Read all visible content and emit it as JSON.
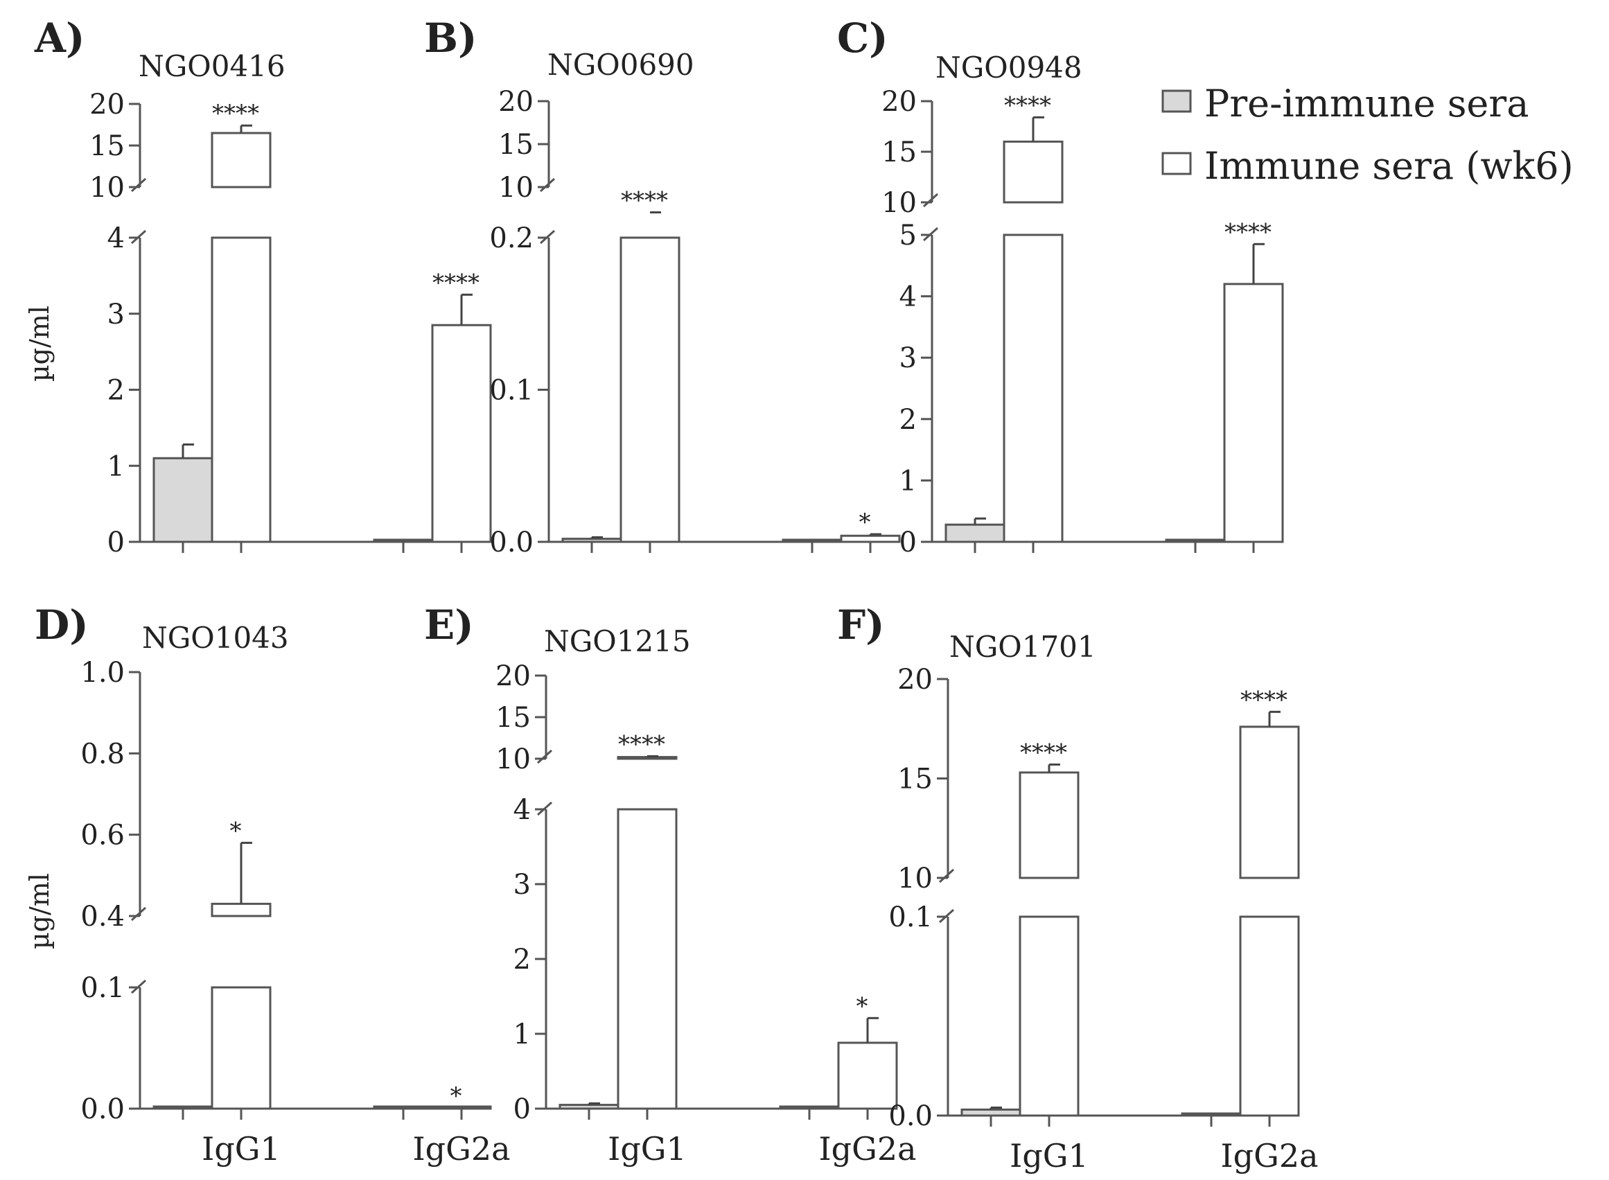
{
  "colors": {
    "pre_immune_fill": "#d9d9d9",
    "immune_fill": "#ffffff",
    "axis": "#555555"
  },
  "legend": {
    "items": [
      {
        "label": "Pre-immune sera",
        "swatch": "#d9d9d9"
      },
      {
        "label": "Immune sera (wk6)",
        "swatch": "#ffffff"
      }
    ]
  },
  "ylabel": "µg/ml",
  "chart_data": [
    {
      "type": "bar",
      "panel": "A)",
      "title": "NGO0416",
      "categories": [
        "IgG1",
        "IgG2a"
      ],
      "show_xticklabels": false,
      "ylabel": "µg/ml",
      "segments": [
        {
          "domain": [
            0,
            4
          ],
          "ticks": [
            0,
            1,
            2,
            3,
            4
          ],
          "tick_labels": [
            "0",
            "1",
            "2",
            "3",
            "4"
          ]
        },
        {
          "domain": [
            10,
            20
          ],
          "ticks": [
            10,
            15,
            20
          ],
          "tick_labels": [
            "10",
            "15",
            "20"
          ]
        }
      ],
      "series": [
        {
          "name": "Pre-immune sera",
          "values": [
            1.1,
            0
          ],
          "errors": [
            0.18,
            0
          ]
        },
        {
          "name": "Immune sera (wk6)",
          "values": [
            16.5,
            2.85
          ],
          "errors": [
            0.9,
            0.4
          ]
        }
      ],
      "annotations": [
        {
          "series": 1,
          "category": 0,
          "text": "****"
        },
        {
          "series": 1,
          "category": 1,
          "text": "****"
        }
      ]
    },
    {
      "type": "bar",
      "panel": "B)",
      "title": "NGO0690",
      "categories": [
        "IgG1",
        "IgG2a"
      ],
      "show_xticklabels": false,
      "ylabel": "",
      "segments": [
        {
          "domain": [
            0,
            0.2
          ],
          "ticks": [
            0,
            0.1,
            0.2
          ],
          "tick_labels": [
            "0.0",
            "0.1",
            "0.2"
          ]
        },
        {
          "domain": [
            10,
            20
          ],
          "ticks": [
            10,
            15,
            20
          ],
          "tick_labels": [
            "10",
            "15",
            "20"
          ]
        }
      ],
      "series": [
        {
          "name": "Pre-immune sera",
          "values": [
            0.002,
            0
          ],
          "errors": [
            0.001,
            0
          ]
        },
        {
          "name": "Immune sera (wk6)",
          "values": [
            9.0,
            0.004
          ],
          "errors": [
            0.15,
            0.001
          ]
        }
      ],
      "annotations": [
        {
          "series": 1,
          "category": 0,
          "text": "****"
        },
        {
          "series": 1,
          "category": 1,
          "text": "*"
        }
      ]
    },
    {
      "type": "bar",
      "panel": "C)",
      "title": "NGO0948",
      "categories": [
        "IgG1",
        "IgG2a"
      ],
      "show_xticklabels": false,
      "ylabel": "",
      "segments": [
        {
          "domain": [
            0,
            5
          ],
          "ticks": [
            0,
            1,
            2,
            3,
            4,
            5
          ],
          "tick_labels": [
            "0",
            "1",
            "2",
            "3",
            "4",
            "5"
          ]
        },
        {
          "domain": [
            10,
            20
          ],
          "ticks": [
            10,
            15,
            20
          ],
          "tick_labels": [
            "10",
            "15",
            "20"
          ]
        }
      ],
      "series": [
        {
          "name": "Pre-immune sera",
          "values": [
            0.28,
            0
          ],
          "errors": [
            0.1,
            0
          ]
        },
        {
          "name": "Immune sera (wk6)",
          "values": [
            16.0,
            4.2
          ],
          "errors": [
            2.4,
            0.65
          ]
        }
      ],
      "annotations": [
        {
          "series": 1,
          "category": 0,
          "text": "****"
        },
        {
          "series": 1,
          "category": 1,
          "text": "****"
        }
      ]
    },
    {
      "type": "bar",
      "panel": "D)",
      "title": "NGO1043",
      "categories": [
        "IgG1",
        "IgG2a"
      ],
      "show_xticklabels": true,
      "ylabel": "µg/ml",
      "segments": [
        {
          "domain": [
            0,
            0.1
          ],
          "ticks": [
            0,
            0.1
          ],
          "tick_labels": [
            "0.0",
            "0.1"
          ]
        },
        {
          "domain": [
            0.4,
            1.0
          ],
          "ticks": [
            0.4,
            0.6,
            0.8,
            1.0
          ],
          "tick_labels": [
            "0.4",
            "0.6",
            "0.8",
            "1.0"
          ]
        }
      ],
      "series": [
        {
          "name": "Pre-immune sera",
          "values": [
            0,
            0
          ],
          "errors": [
            0,
            0
          ]
        },
        {
          "name": "Immune sera (wk6)",
          "values": [
            0.43,
            0.0005
          ],
          "errors": [
            0.15,
            0
          ]
        }
      ],
      "annotations": [
        {
          "series": 1,
          "category": 0,
          "text": "*"
        },
        {
          "series": 1,
          "category": 1,
          "text": "*"
        }
      ]
    },
    {
      "type": "bar",
      "panel": "E)",
      "title": "NGO1215",
      "categories": [
        "IgG1",
        "IgG2a"
      ],
      "show_xticklabels": true,
      "ylabel": "",
      "segments": [
        {
          "domain": [
            0,
            4
          ],
          "ticks": [
            0,
            1,
            2,
            3,
            4
          ],
          "tick_labels": [
            "0",
            "1",
            "2",
            "3",
            "4"
          ]
        },
        {
          "domain": [
            10,
            20
          ],
          "ticks": [
            10,
            15,
            20
          ],
          "tick_labels": [
            "10",
            "15",
            "20"
          ]
        }
      ],
      "series": [
        {
          "name": "Pre-immune sera",
          "values": [
            0.05,
            0
          ],
          "errors": [
            0.02,
            0
          ]
        },
        {
          "name": "Immune sera (wk6)",
          "values": [
            10.2,
            0.88
          ],
          "errors": [
            0.1,
            0.33
          ]
        }
      ],
      "annotations": [
        {
          "series": 1,
          "category": 0,
          "text": "****"
        },
        {
          "series": 1,
          "category": 1,
          "text": "*"
        }
      ]
    },
    {
      "type": "bar",
      "panel": "F)",
      "title": "NGO1701",
      "categories": [
        "IgG1",
        "IgG2a"
      ],
      "show_xticklabels": true,
      "ylabel": "",
      "segments": [
        {
          "domain": [
            0,
            0.1
          ],
          "ticks": [
            0,
            0.1
          ],
          "tick_labels": [
            "0.0",
            "0.1"
          ]
        },
        {
          "domain": [
            10,
            20
          ],
          "ticks": [
            10,
            15,
            20
          ],
          "tick_labels": [
            "10",
            "15",
            "20"
          ]
        }
      ],
      "series": [
        {
          "name": "Pre-immune sera",
          "values": [
            0.003,
            0
          ],
          "errors": [
            0.001,
            0
          ]
        },
        {
          "name": "Immune sera (wk6)",
          "values": [
            15.3,
            17.6
          ],
          "errors": [
            0.4,
            0.75
          ]
        }
      ],
      "annotations": [
        {
          "series": 1,
          "category": 0,
          "text": "****"
        },
        {
          "series": 1,
          "category": 1,
          "text": "****"
        }
      ]
    }
  ]
}
